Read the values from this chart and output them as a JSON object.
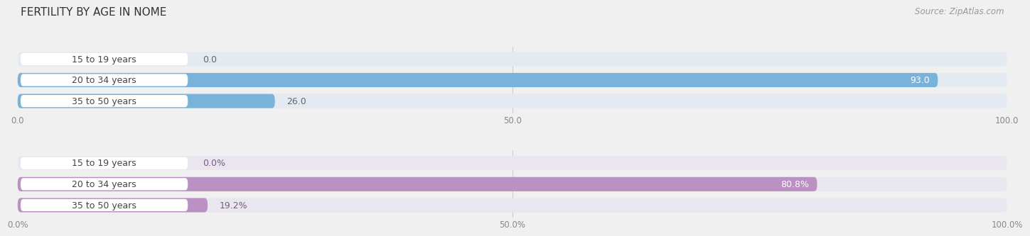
{
  "title": "FERTILITY BY AGE IN NOME",
  "source": "Source: ZipAtlas.com",
  "top_section": {
    "categories": [
      "15 to 19 years",
      "20 to 34 years",
      "35 to 50 years"
    ],
    "values": [
      0.0,
      93.0,
      26.0
    ],
    "max_val": 100.0,
    "bar_color": "#7ab3d9",
    "bg_color": "#e4eaf2",
    "value_color_inside": "#ffffff",
    "value_color_outside": "#666666",
    "tick_labels": [
      "0.0",
      "50.0",
      "100.0"
    ]
  },
  "bottom_section": {
    "categories": [
      "15 to 19 years",
      "20 to 34 years",
      "35 to 50 years"
    ],
    "values": [
      0.0,
      80.8,
      19.2
    ],
    "max_val": 100.0,
    "bar_color": "#bb91c4",
    "bg_color": "#eae6f0",
    "value_color_inside": "#ffffff",
    "value_color_outside": "#7a5a8a",
    "tick_labels": [
      "0.0%",
      "50.0%",
      "100.0%"
    ]
  },
  "fig_bg": "#f0f0f0",
  "title_fontsize": 11,
  "label_fontsize": 9,
  "value_fontsize": 9,
  "tick_fontsize": 8.5
}
